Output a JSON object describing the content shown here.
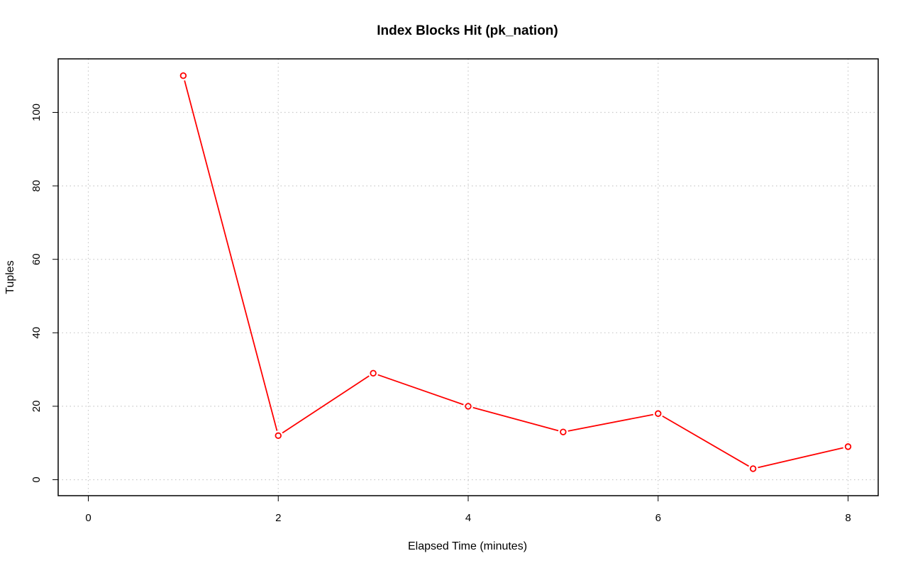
{
  "chart_data": {
    "type": "line",
    "title": "Index Blocks Hit (pk_nation)",
    "xlabel": "Elapsed Time (minutes)",
    "ylabel": "Tuples",
    "xlim": [
      0,
      8
    ],
    "ylim": [
      0,
      110
    ],
    "x_ticks": [
      "0",
      "2",
      "4",
      "6",
      "8"
    ],
    "y_ticks": [
      "0",
      "20",
      "40",
      "60",
      "80",
      "100"
    ],
    "grid": true,
    "series": [
      {
        "color": "#ff0000",
        "marker": "open-circle",
        "x": [
          1,
          2,
          3,
          4,
          5,
          6,
          7,
          8
        ],
        "y": [
          110,
          12,
          29,
          20,
          13,
          18,
          3,
          9
        ]
      }
    ]
  }
}
